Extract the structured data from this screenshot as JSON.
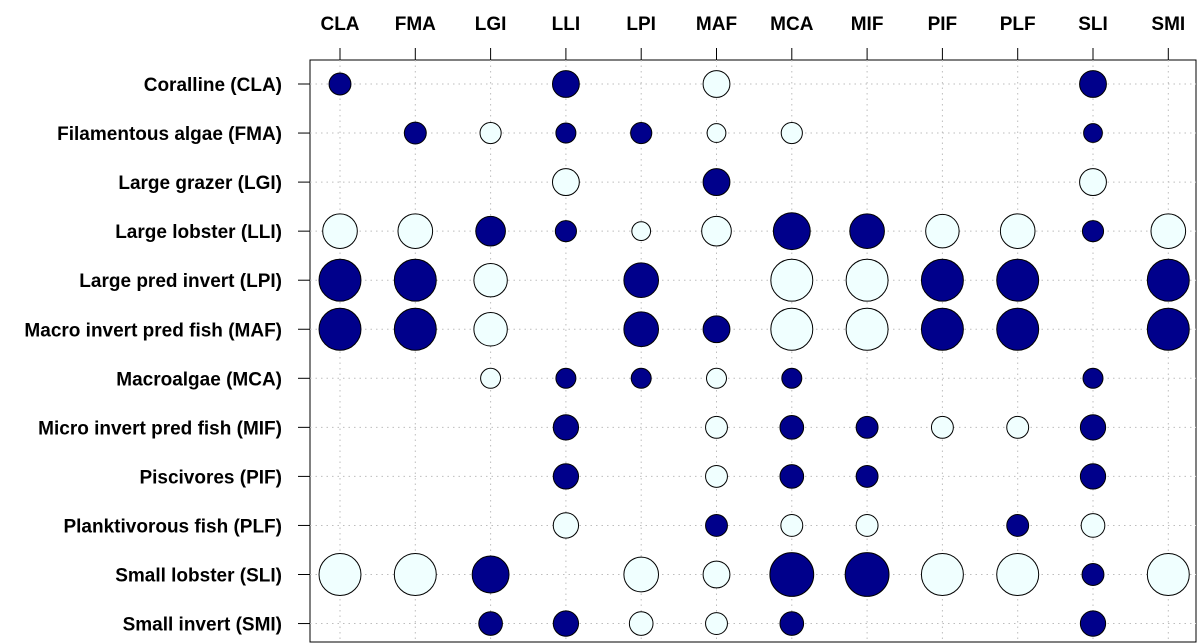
{
  "chart_data": {
    "type": "bubble-matrix",
    "columns": [
      "CLA",
      "FMA",
      "LGI",
      "LLI",
      "LPI",
      "MAF",
      "MCA",
      "MIF",
      "PIF",
      "PLF",
      "SLI",
      "SMI"
    ],
    "rows": [
      "Coralline (CLA)",
      "Filamentous algae (FMA)",
      "Large grazer (LGI)",
      "Large lobster (LLI)",
      "Large pred invert (LPI)",
      "Macro invert pred fish (MAF)",
      "Macroalgae (MCA)",
      "Micro invert pred fish (MIF)",
      "Piscivores (PIF)",
      "Planktivorous fish (PLF)",
      "Small lobster (SLI)",
      "Small invert (SMI)"
    ],
    "values": [
      [
        0.3,
        null,
        null,
        0.45,
        null,
        -0.45,
        null,
        null,
        null,
        null,
        0.45,
        null
      ],
      [
        null,
        0.3,
        -0.28,
        0.25,
        0.28,
        -0.22,
        -0.28,
        null,
        null,
        null,
        0.22,
        null
      ],
      [
        null,
        null,
        null,
        -0.45,
        null,
        0.45,
        null,
        null,
        null,
        null,
        -0.45,
        null
      ],
      [
        -0.75,
        -0.75,
        0.55,
        0.28,
        -0.22,
        -0.55,
        0.85,
        0.75,
        -0.7,
        -0.75,
        0.28,
        -0.75
      ],
      [
        1.1,
        1.1,
        -0.7,
        null,
        0.75,
        null,
        -1.1,
        -1.1,
        1.1,
        1.1,
        null,
        1.1
      ],
      [
        1.1,
        1.1,
        -0.7,
        null,
        0.75,
        0.45,
        -1.1,
        -1.1,
        1.1,
        1.1,
        null,
        1.1
      ],
      [
        null,
        null,
        -0.25,
        0.25,
        0.25,
        -0.25,
        0.25,
        null,
        null,
        null,
        0.25,
        null
      ],
      [
        null,
        null,
        null,
        0.4,
        null,
        -0.3,
        0.35,
        0.3,
        -0.3,
        -0.3,
        0.4,
        null
      ],
      [
        null,
        null,
        null,
        0.4,
        null,
        -0.3,
        0.35,
        0.3,
        null,
        null,
        0.4,
        null
      ],
      [
        null,
        null,
        null,
        -0.4,
        null,
        0.3,
        -0.3,
        -0.3,
        null,
        0.3,
        -0.35,
        null
      ],
      [
        -1.1,
        -1.1,
        0.85,
        null,
        -0.75,
        -0.45,
        1.2,
        1.2,
        -1.1,
        -1.1,
        0.3,
        -1.1
      ],
      [
        null,
        null,
        0.35,
        0.4,
        -0.35,
        -0.3,
        0.35,
        null,
        null,
        null,
        0.4,
        null
      ]
    ],
    "value_note": "",
    "colors": {
      "positive": "#00008b",
      "negative": "#f0ffff"
    },
    "grid": true
  }
}
